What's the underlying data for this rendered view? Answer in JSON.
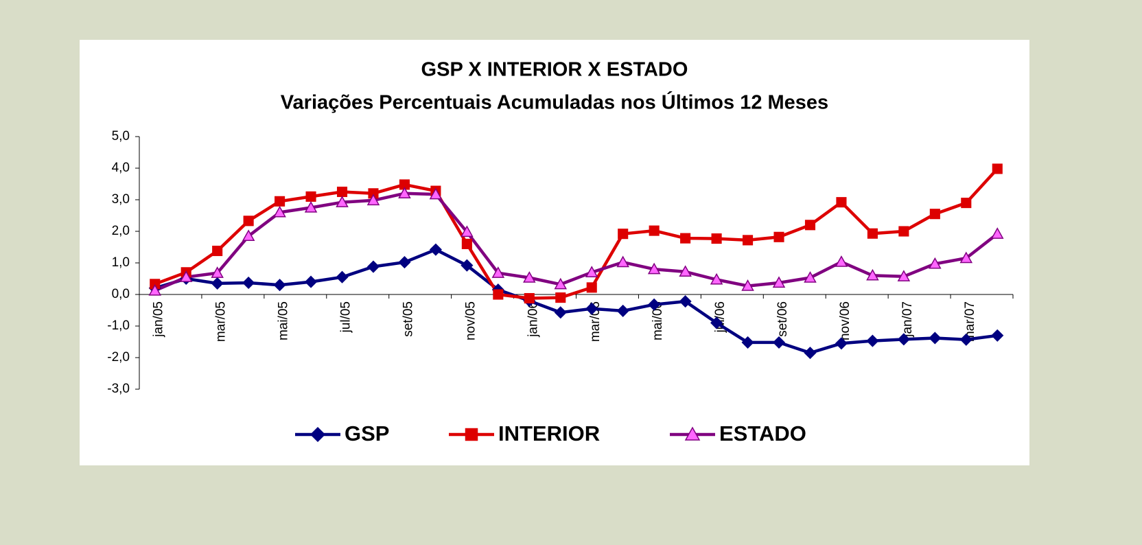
{
  "chart_data": {
    "type": "line",
    "title": "GSP X INTERIOR X ESTADO",
    "subtitle": "Variações Percentuais Acumuladas nos Últimos 12 Meses",
    "categories": [
      "jan/05",
      null,
      "mar/05",
      null,
      "mai/05",
      null,
      "jul/05",
      null,
      "set/05",
      null,
      "nov/05",
      null,
      "jan/06",
      null,
      "mar/06",
      null,
      "mai/06",
      null,
      "jul/06",
      null,
      "set/06",
      null,
      "nov/06",
      null,
      "jan/07",
      null,
      "mar/07",
      null
    ],
    "series": [
      {
        "name": "GSP",
        "color": "#000080",
        "marker": "diamond",
        "marker_color": "#000080",
        "values": [
          0.2,
          0.5,
          0.35,
          0.37,
          0.3,
          0.4,
          0.55,
          0.88,
          1.02,
          1.42,
          0.92,
          0.15,
          -0.2,
          -0.57,
          -0.45,
          -0.52,
          -0.32,
          -0.22,
          -0.9,
          -1.52,
          -1.52,
          -1.85,
          -1.55,
          -1.47,
          -1.42,
          -1.38,
          -1.43,
          -1.3
        ]
      },
      {
        "name": "INTERIOR",
        "color": "#dd0000",
        "marker": "square",
        "marker_color": "#dd0000",
        "values": [
          0.33,
          0.7,
          1.38,
          2.33,
          2.95,
          3.1,
          3.25,
          3.2,
          3.48,
          3.28,
          1.6,
          0.0,
          -0.12,
          -0.1,
          0.22,
          1.92,
          2.02,
          1.78,
          1.77,
          1.72,
          1.82,
          2.2,
          2.92,
          1.93,
          2.0,
          2.55,
          2.9,
          3.98
        ]
      },
      {
        "name": "ESTADO",
        "color": "#800080",
        "marker": "triangle",
        "marker_color": "#ff66ff",
        "values": [
          0.12,
          0.55,
          0.68,
          1.85,
          2.6,
          2.75,
          2.92,
          2.98,
          3.2,
          3.17,
          1.98,
          0.68,
          0.53,
          0.32,
          0.7,
          1.02,
          0.8,
          0.72,
          0.47,
          0.27,
          0.37,
          0.53,
          1.03,
          0.6,
          0.57,
          0.97,
          1.15,
          1.92
        ]
      }
    ],
    "ylim": [
      -3,
      5
    ],
    "yticks": [
      {
        "value": -3,
        "label": "-3,0"
      },
      {
        "value": -2,
        "label": "-2,0"
      },
      {
        "value": -1,
        "label": "-1,0"
      },
      {
        "value": 0,
        "label": "0,0"
      },
      {
        "value": 1,
        "label": "1,0"
      },
      {
        "value": 2,
        "label": "2,0"
      },
      {
        "value": 3,
        "label": "3,0"
      },
      {
        "value": 4,
        "label": "4,0"
      },
      {
        "value": 5,
        "label": "5,0"
      }
    ],
    "grid": false,
    "legend": "bottom"
  }
}
